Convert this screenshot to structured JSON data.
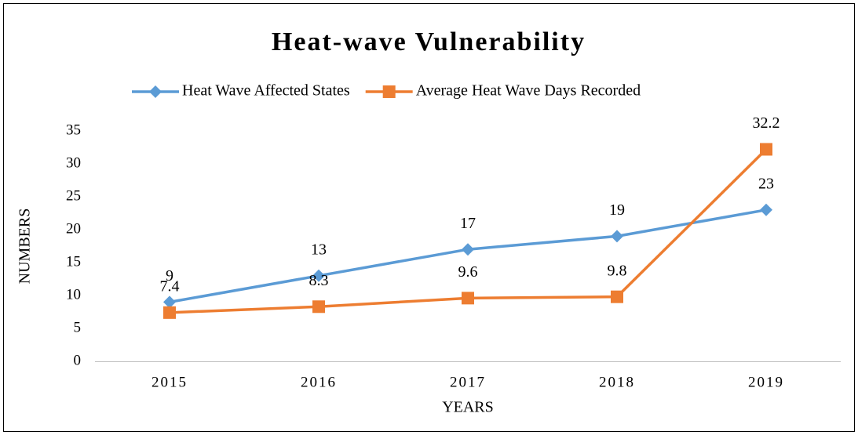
{
  "chart_data": {
    "type": "line",
    "title": "Heat-wave Vulnerability",
    "x_label": "YEARS",
    "y_label": "NUMBERS",
    "categories": [
      "2015",
      "2016",
      "2017",
      "2018",
      "2019"
    ],
    "series": [
      {
        "name": "Heat Wave Affected States",
        "color": "#5b9bd5",
        "marker": "diamond",
        "values": [
          9,
          13,
          17,
          19,
          23
        ]
      },
      {
        "name": "Average Heat Wave Days Recorded",
        "color": "#ed7d31",
        "marker": "square",
        "values": [
          7.4,
          8.3,
          9.6,
          9.8,
          32.2
        ]
      }
    ],
    "ylim": [
      0,
      35
    ],
    "yticks": [
      0,
      5,
      10,
      15,
      20,
      25,
      30,
      35
    ],
    "grid": false,
    "legend": "top"
  }
}
